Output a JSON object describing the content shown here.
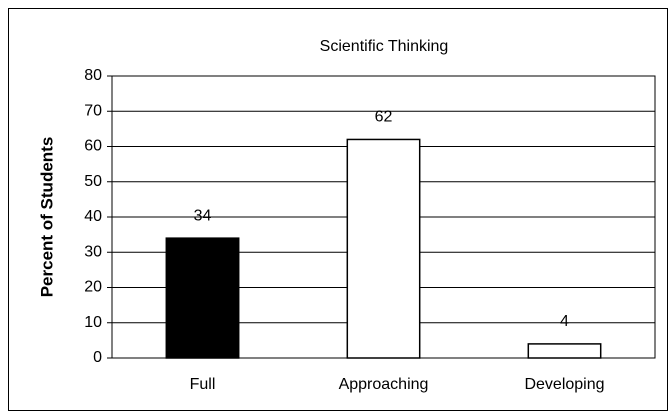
{
  "chart_data": {
    "type": "bar",
    "title": "Scientific Thinking",
    "y_label": "Percent of Students",
    "categories": [
      "Full",
      "Approaching",
      "Developing"
    ],
    "values": [
      34,
      62,
      4
    ],
    "colors": [
      "#000000",
      "#ffffff",
      "#ffffff"
    ],
    "ylim": [
      0,
      80
    ],
    "yticks": [
      0,
      10,
      20,
      30,
      40,
      50,
      60,
      70,
      80
    ],
    "grid": true
  }
}
